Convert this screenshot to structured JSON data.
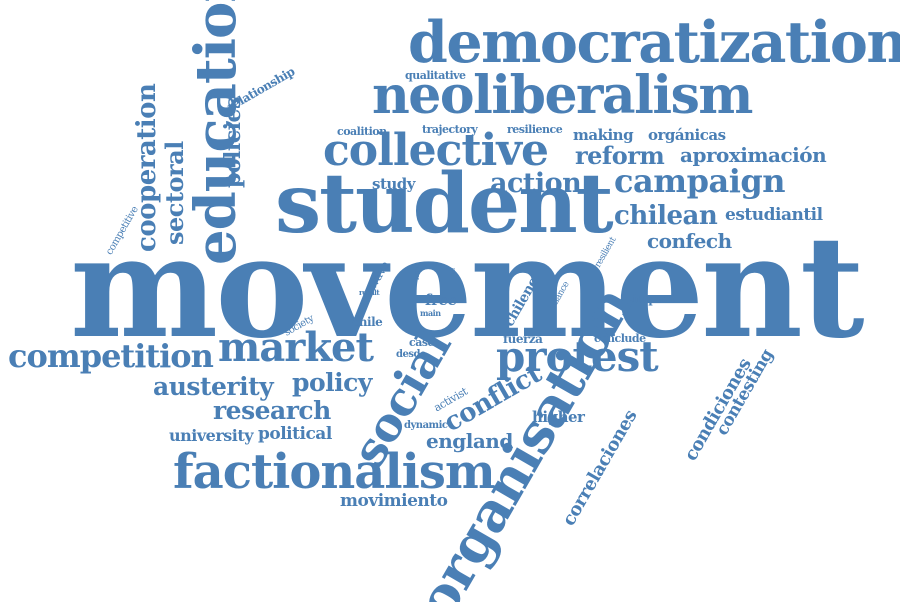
{
  "title": "word cloud",
  "color": "#4a7fb5",
  "words": {
    "movement": "movement",
    "student": "student",
    "democratization": "democratization",
    "neoliberalism": "neoliberalism",
    "collective": "collective",
    "education": "education",
    "organisation": "organisation",
    "factionalism": "factionalism",
    "social": "social",
    "protest": "protest",
    "market": "market",
    "competition": "competition",
    "campaign": "campaign",
    "reform": "reform",
    "aproximacion": "aproximación",
    "action": "action",
    "chilean": "chilean",
    "estudiantil": "estudiantil",
    "confech": "confech",
    "cooperation": "cooperation",
    "sectoral": "sectoral",
    "policies": "policies",
    "competitive": "competitive",
    "relationship": "relationship",
    "qualitative": "qualitative",
    "making": "making",
    "organicas": "orgánicas",
    "coalition": "coalition",
    "trajectory": "trajectory",
    "resilience": "resilience",
    "study": "study",
    "austerity": "austerity",
    "policy": "policy",
    "research": "research",
    "university": "university",
    "political": "political",
    "conflict": "conflict",
    "england": "england",
    "higher": "higher",
    "dynamic": "dynamic",
    "activist": "activist",
    "movimiento": "movimiento",
    "correlaciones": "correlaciones",
    "condiciones": "condiciones",
    "contesting": "contesting",
    "impact": "impact",
    "conclude": "conclude",
    "fuerza": "fuerza",
    "chileno": "chileno",
    "alliance": "alliance",
    "resilient": "resilient",
    "free": "free",
    "main": "main",
    "chile": "chile",
    "case": "case",
    "desde": "desde",
    "society": "society",
    "wave": "wave",
    "result": "result",
    "loan": "loan",
    "fee": "fee"
  }
}
